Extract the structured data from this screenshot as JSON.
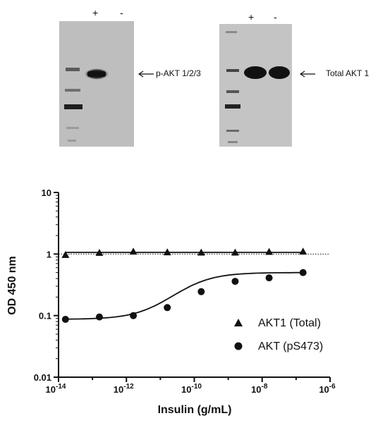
{
  "blots": [
    {
      "lanes": [
        "+",
        "-"
      ],
      "label": "p-AKT 1/2/3"
    },
    {
      "lanes": [
        "+",
        "-"
      ],
      "label": "Total AKT 1"
    }
  ],
  "chart_data": {
    "type": "scatter",
    "xscale": "log",
    "yscale": "log",
    "xlabel": "Insulin (g/mL)",
    "ylabel": "OD 450 nm",
    "xlim": [
      1e-14,
      1e-06
    ],
    "ylim": [
      0.01,
      10
    ],
    "xticks": [
      {
        "value": 1e-14,
        "base": "10",
        "exp": "-14"
      },
      {
        "value": 1e-12,
        "base": "10",
        "exp": "-12"
      },
      {
        "value": 1e-10,
        "base": "10",
        "exp": "-10"
      },
      {
        "value": 1e-08,
        "base": "10",
        "exp": "-8"
      },
      {
        "value": 1e-06,
        "base": "10",
        "exp": "-6"
      }
    ],
    "yticks": [
      {
        "value": 10,
        "label": "10"
      },
      {
        "value": 1,
        "label": "1"
      },
      {
        "value": 0.1,
        "label": "0.1"
      },
      {
        "value": 0.01,
        "label": "0.01"
      }
    ],
    "reference_line": {
      "y": 1,
      "style": "dotted"
    },
    "legend_position": "bottom-right",
    "series": [
      {
        "name": "AKT1 (Total)",
        "marker": "triangle",
        "x": [
          1.6e-14,
          1.6e-13,
          1.6e-12,
          1.6e-11,
          1.6e-10,
          1.6e-09,
          1.6e-08,
          1.6e-07
        ],
        "y": [
          0.97,
          1.05,
          1.1,
          1.07,
          1.06,
          1.06,
          1.09,
          1.1
        ],
        "fit": "flat"
      },
      {
        "name": "AKT (pS473)",
        "marker": "circle",
        "x": [
          1.6e-14,
          1.6e-13,
          1.6e-12,
          1.6e-11,
          1.6e-10,
          1.6e-09,
          1.6e-08,
          1.6e-07
        ],
        "y": [
          0.087,
          0.095,
          0.1,
          0.135,
          0.245,
          0.36,
          0.41,
          0.5
        ],
        "fit": "sigmoid"
      }
    ]
  }
}
